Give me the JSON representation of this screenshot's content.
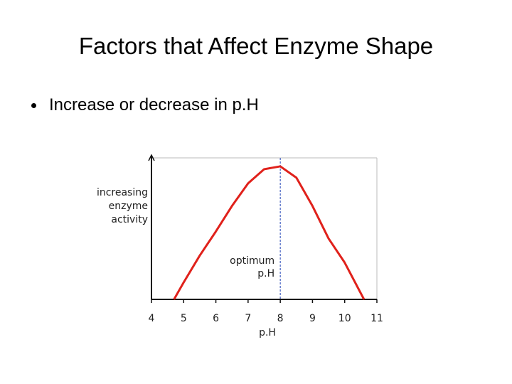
{
  "title": "Factors that Affect Enzyme Shape",
  "bullets": [
    "Increase or decrease in p.H"
  ],
  "chart_data": {
    "type": "line",
    "xlabel": "p.H",
    "ylabel": [
      "increasing",
      "enzyme",
      "activity"
    ],
    "annotation": [
      "optimum",
      "p.H"
    ],
    "optimum_x": 8,
    "x": [
      4.7,
      5,
      5.5,
      6,
      6.5,
      7,
      7.5,
      8,
      8.5,
      9,
      9.5,
      10,
      10.6
    ],
    "series": [
      {
        "color": "#e0211b",
        "values": [
          0,
          12,
          31,
          48,
          66,
          82,
          92,
          94,
          86,
          66,
          43,
          26,
          0
        ]
      }
    ],
    "xlim": [
      4,
      11
    ],
    "ylim": [
      0,
      100
    ],
    "xticks": [
      4,
      5,
      6,
      7,
      8,
      9,
      10,
      11
    ],
    "optimum_color": "#1f3fb5"
  }
}
